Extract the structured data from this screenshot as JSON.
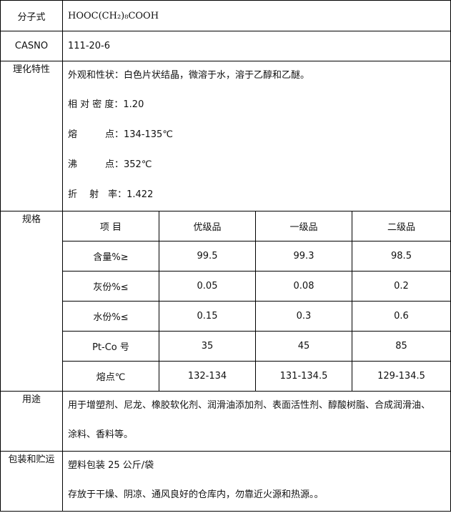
{
  "formula": {
    "label": "分子式",
    "value": "HOOC(CH₂)₈COOH"
  },
  "cas": {
    "label": "CASNO",
    "value": "111-20-6"
  },
  "properties": {
    "label": "理化特性",
    "lines": [
      "外观和性状：白色片状结晶，微溶于水，溶于乙醇和乙醚。",
      "相 对 密 度：1.20",
      "熔　　　点：134-135℃",
      "沸　　　点：352℃",
      "折　 射　率：1.422"
    ]
  },
  "spec": {
    "label": "规格",
    "headers": [
      "项 目",
      "优级品",
      "一级品",
      "二级品"
    ],
    "rows": [
      [
        "含量%≥",
        "99.5",
        "99.3",
        "98.5"
      ],
      [
        "灰份%≤",
        "0.05",
        "0.08",
        "0.2"
      ],
      [
        "水份%≤",
        "0.15",
        "0.3",
        "0.6"
      ],
      [
        "Pt-Co 号",
        "35",
        "45",
        "85"
      ],
      [
        "熔点℃",
        "132-134",
        "131-134.5",
        "129-134.5"
      ]
    ]
  },
  "usage": {
    "label": "用途",
    "lines": [
      "用于增塑剂、尼龙、橡胶软化剂、润滑油添加剂、表面活性剂、醇酸树脂、合成润滑油、",
      "涂料、香料等。"
    ]
  },
  "packaging": {
    "label": "包装和贮运",
    "lines": [
      "塑料包装 25 公斤/袋",
      "存放于干燥、阴凉、通风良好的仓库内，勿靠近火源和热源。。"
    ]
  }
}
